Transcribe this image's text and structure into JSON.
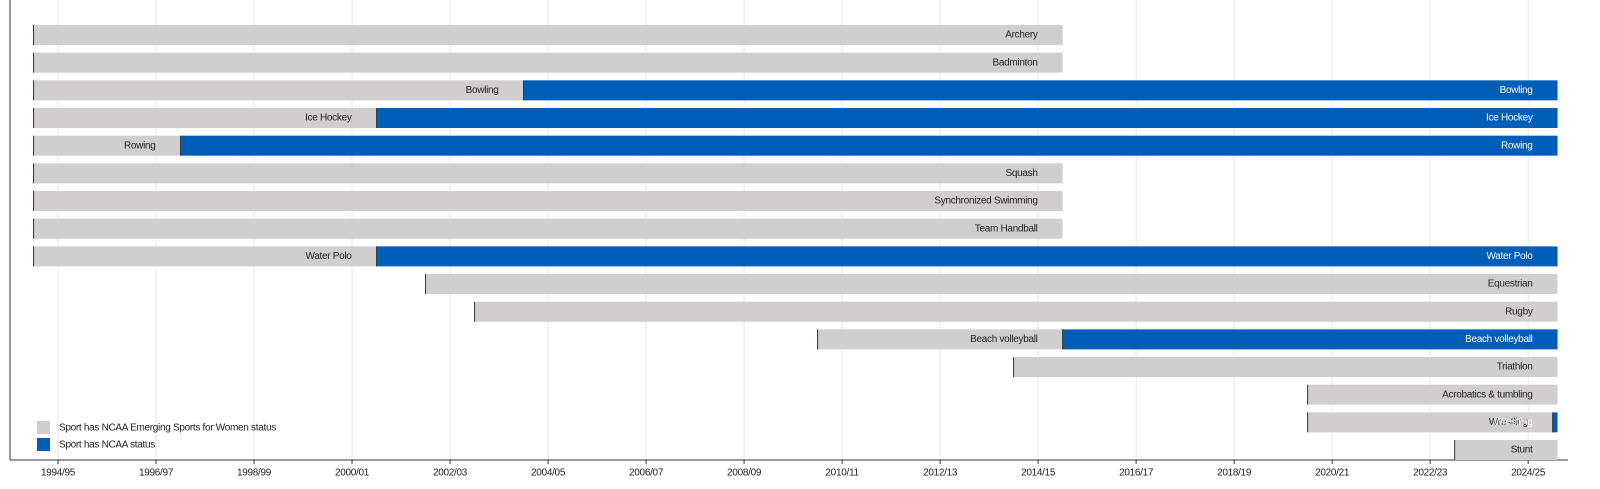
{
  "chart_data": {
    "type": "timeline",
    "series": [
      {
        "name": "Sport has NCAA Emerging Sports for Women status",
        "color": "#d0cece"
      },
      {
        "name": "Sport has NCAA status",
        "color": "#005eb8"
      }
    ],
    "rows": [
      {
        "sport": "Archery",
        "emerging": [
          1993.5,
          2014.5
        ],
        "ncaa": null
      },
      {
        "sport": "Badminton",
        "emerging": [
          1993.5,
          2014.5
        ],
        "ncaa": null
      },
      {
        "sport": "Bowling",
        "emerging": [
          1993.5,
          2003.5
        ],
        "ncaa": [
          2003.5,
          2024.6
        ]
      },
      {
        "sport": "Ice Hockey",
        "emerging": [
          1993.5,
          2000.5
        ],
        "ncaa": [
          2000.5,
          2024.6
        ]
      },
      {
        "sport": "Rowing",
        "emerging": [
          1993.5,
          1996.5
        ],
        "ncaa": [
          1996.5,
          2024.6
        ]
      },
      {
        "sport": "Squash",
        "emerging": [
          1993.5,
          2014.5
        ],
        "ncaa": null
      },
      {
        "sport": "Synchronized Swimming",
        "emerging": [
          1993.5,
          2014.5
        ],
        "ncaa": null
      },
      {
        "sport": "Team Handball",
        "emerging": [
          1993.5,
          2014.5
        ],
        "ncaa": null
      },
      {
        "sport": "Water Polo",
        "emerging": [
          1993.5,
          2000.5
        ],
        "ncaa": [
          2000.5,
          2024.6
        ]
      },
      {
        "sport": "Equestrian",
        "emerging": [
          2001.5,
          2024.6
        ],
        "ncaa": null
      },
      {
        "sport": "Rugby",
        "emerging": [
          2002.5,
          2024.6
        ],
        "ncaa": null
      },
      {
        "sport": "Beach volleyball",
        "emerging": [
          2009.5,
          2014.5
        ],
        "ncaa": [
          2014.5,
          2024.6
        ]
      },
      {
        "sport": "Triathlon",
        "emerging": [
          2013.5,
          2024.6
        ],
        "ncaa": null
      },
      {
        "sport": "Acrobatics & tumbling",
        "emerging": [
          2019.5,
          2024.6
        ],
        "ncaa": null
      },
      {
        "sport": "Wrestling",
        "emerging": [
          2019.5,
          2024.5
        ],
        "ncaa": [
          2024.5,
          2024.6
        ]
      },
      {
        "sport": "Stunt",
        "emerging": [
          2022.5,
          2024.6
        ],
        "ncaa": null
      }
    ],
    "xlim": [
      1993.02,
      2024.65
    ],
    "xticks": [
      {
        "value": 1994,
        "label": "1994/95"
      },
      {
        "value": 1996,
        "label": "1996/97"
      },
      {
        "value": 1998,
        "label": "1998/99"
      },
      {
        "value": 2000,
        "label": "2000/01"
      },
      {
        "value": 2002,
        "label": "2002/03"
      },
      {
        "value": 2004,
        "label": "2004/05"
      },
      {
        "value": 2006,
        "label": "2006/07"
      },
      {
        "value": 2008,
        "label": "2008/09"
      },
      {
        "value": 2010,
        "label": "2010/11"
      },
      {
        "value": 2012,
        "label": "2012/13"
      },
      {
        "value": 2014,
        "label": "2014/15"
      },
      {
        "value": 2016,
        "label": "2016/17"
      },
      {
        "value": 2018,
        "label": "2018/19"
      },
      {
        "value": 2020,
        "label": "2020/21"
      },
      {
        "value": 2022,
        "label": "2022/23"
      },
      {
        "value": 2024,
        "label": "2024/25"
      }
    ],
    "grid": true
  }
}
